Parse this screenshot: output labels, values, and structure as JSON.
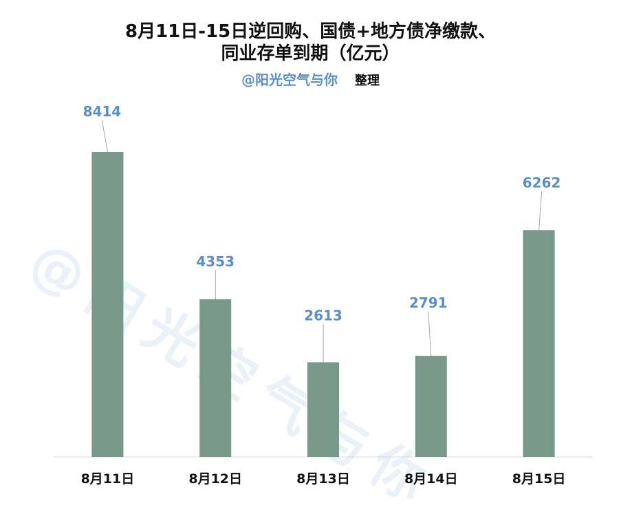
{
  "title_line1": "8月11日-15日逆回购、国债+地方债净缴款、",
  "title_line2": "同业存单到期（亿元）",
  "author": "@阳光空气与你",
  "author_suffix": "整理",
  "watermark": "@阳光空气与你",
  "colors": {
    "bar": "#78998a",
    "label": "#5b8fc7",
    "axis": "#d9d9d9",
    "leader": "#a6a6a6"
  },
  "chart_data": {
    "type": "bar",
    "categories": [
      "8月11日",
      "8月12日",
      "8月13日",
      "8月14日",
      "8月15日"
    ],
    "values": [
      8414,
      4353,
      2613,
      2791,
      6262
    ],
    "title": "8月11日-15日逆回购、国债+地方债净缴款、同业存单到期（亿元）",
    "xlabel": "",
    "ylabel": "",
    "ylim": [
      0,
      8414
    ],
    "grid": false,
    "legend": "none",
    "data_labels": true
  }
}
